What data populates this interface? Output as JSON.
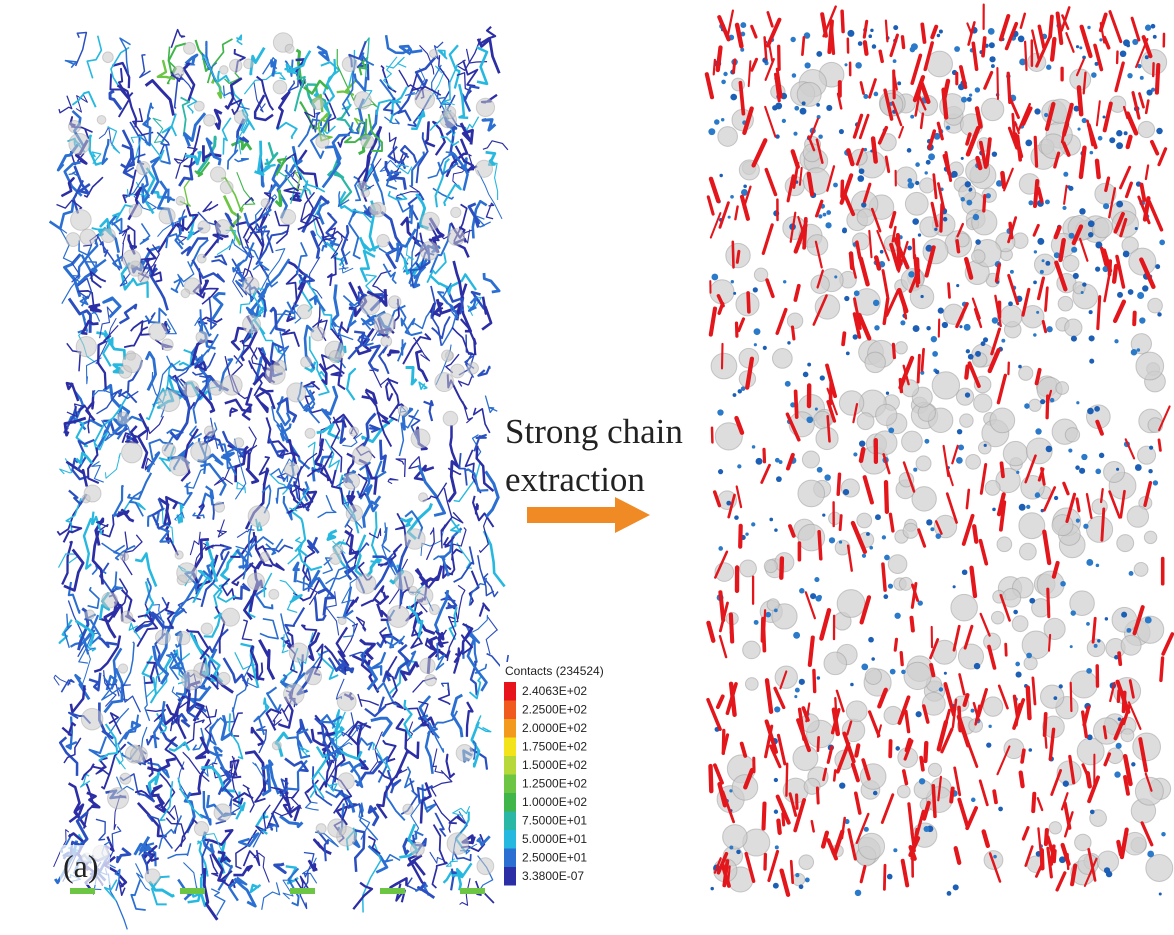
{
  "figure": {
    "panel_label": "(a)",
    "legend": {
      "title": "Contacts (234524)",
      "labels": [
        "2.4063E+02",
        "2.2500E+02",
        "2.0000E+02",
        "1.7500E+02",
        "1.5000E+02",
        "1.2500E+02",
        "1.0000E+02",
        "7.5000E+01",
        "5.0000E+01",
        "2.5000E+01",
        "3.3800E-07"
      ]
    },
    "arrow_text": [
      "Strong chain",
      "extraction"
    ]
  }
}
